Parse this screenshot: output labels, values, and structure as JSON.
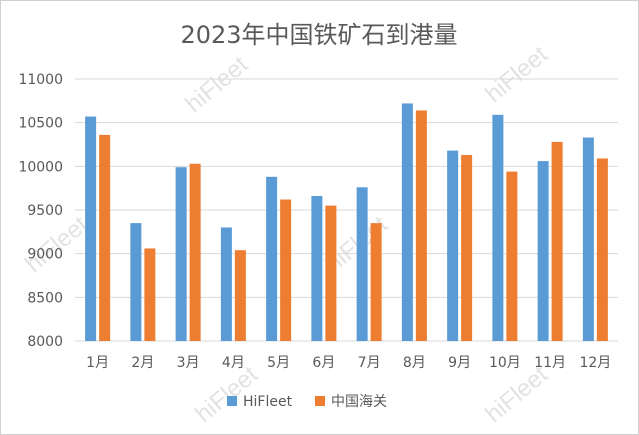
{
  "watermark": "hiFleet",
  "colors": {
    "hifleet": "#5b9bd5",
    "customs": "#ed7d31",
    "grid": "#d9d9d9",
    "axis_text": "#595959",
    "title": "#595959"
  },
  "chart_data": {
    "type": "bar",
    "title": "2023年中国铁矿石到港量",
    "xlabel": "",
    "ylabel": "",
    "categories": [
      "1月",
      "2月",
      "3月",
      "4月",
      "5月",
      "6月",
      "7月",
      "8月",
      "9月",
      "10月",
      "11月",
      "12月"
    ],
    "series": [
      {
        "name": "HiFleet",
        "values": [
          10570,
          9350,
          9990,
          9300,
          9880,
          9660,
          9760,
          10720,
          10180,
          10590,
          10060,
          10330
        ]
      },
      {
        "name": "中国海关",
        "values": [
          10360,
          9060,
          10030,
          9040,
          9620,
          9550,
          9350,
          10640,
          10130,
          9940,
          10280,
          10090
        ]
      }
    ],
    "ylim": [
      8000,
      11000
    ],
    "yticks": [
      8000,
      8500,
      9000,
      9500,
      10000,
      10500,
      11000
    ],
    "grid": true,
    "legend": "bottom"
  }
}
